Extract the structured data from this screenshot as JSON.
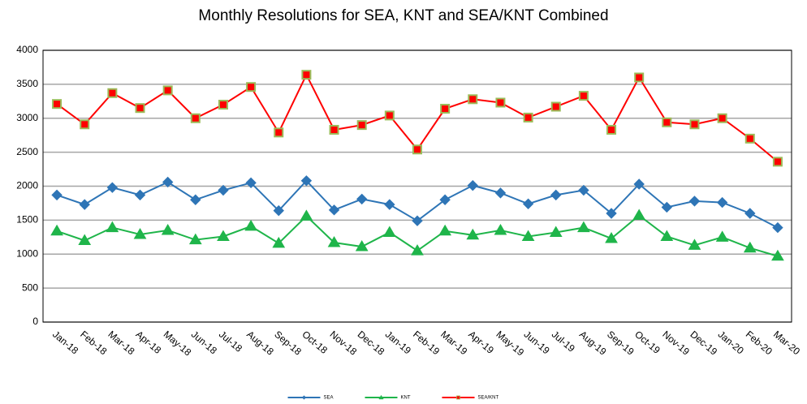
{
  "chart_data": {
    "type": "line",
    "title": "Monthly Resolutions for SEA, KNT and SEA/KNT Combined",
    "categories": [
      "Jan-18",
      "Feb-18",
      "Mar-18",
      "Apr-18",
      "May-18",
      "Jun-18",
      "Jul-18",
      "Aug-18",
      "Sep-18",
      "Oct-18",
      "Nov-18",
      "Dec-18",
      "Jan-19",
      "Feb-19",
      "Mar-19",
      "Apr-19",
      "May-19",
      "Jun-19",
      "Jul-19",
      "Aug-19",
      "Sep-19",
      "Oct-19",
      "Nov-19",
      "Dec-19",
      "Jan-20",
      "Feb-20",
      "Mar-20"
    ],
    "series": [
      {
        "name": "SEA",
        "color": "#2e75b6",
        "marker": "diamond",
        "values": [
          1870,
          1730,
          1980,
          1870,
          2060,
          1800,
          1940,
          2050,
          1640,
          2080,
          1650,
          1810,
          1730,
          1490,
          1800,
          2010,
          1900,
          1740,
          1870,
          1940,
          1600,
          2030,
          1690,
          1780,
          1760,
          1600,
          1390
        ]
      },
      {
        "name": "KNT",
        "color": "#1fb54a",
        "marker": "triangle",
        "values": [
          1340,
          1200,
          1390,
          1290,
          1350,
          1210,
          1260,
          1410,
          1160,
          1560,
          1170,
          1110,
          1320,
          1050,
          1340,
          1280,
          1350,
          1260,
          1320,
          1390,
          1230,
          1570,
          1260,
          1130,
          1250,
          1090,
          970
        ]
      },
      {
        "name": "SEA/KNT",
        "color": "#ff0000",
        "marker": "square",
        "marker_edge": "#9bbb59",
        "values": [
          3210,
          2910,
          3370,
          3150,
          3410,
          3000,
          3200,
          3460,
          2790,
          3640,
          2830,
          2900,
          3040,
          2540,
          3140,
          3280,
          3230,
          3010,
          3170,
          3330,
          2830,
          3600,
          2940,
          2910,
          3000,
          2700,
          2360
        ]
      }
    ],
    "ylim": [
      0,
      4000
    ],
    "yticks": [
      0,
      500,
      1000,
      1500,
      2000,
      2500,
      3000,
      3500,
      4000
    ],
    "grid": true,
    "legend": "bottom"
  }
}
